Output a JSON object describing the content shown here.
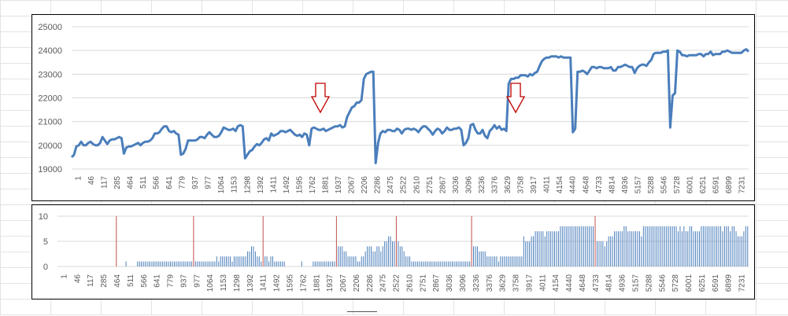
{
  "colors": {
    "line": "#4a7ebb",
    "bar": "#4a7ebb",
    "marker_bar": "#c0504d",
    "arrow": "#c00000",
    "grid": "#d9d9d9"
  },
  "chart_data": [
    {
      "type": "line",
      "title": "",
      "xlabel": "",
      "ylabel": "",
      "ylim": [
        19000,
        25000
      ],
      "yticks": [
        "19000",
        "20000",
        "21000",
        "22000",
        "23000",
        "24000",
        "25000"
      ],
      "xticks": [
        "1",
        "46",
        "117",
        "285",
        "464",
        "511",
        "566",
        "641",
        "779",
        "937",
        "977",
        "1064",
        "1153",
        "1298",
        "1392",
        "1411",
        "1492",
        "1595",
        "1762",
        "1881",
        "1937",
        "2067",
        "2206",
        "2286",
        "2475",
        "2522",
        "2610",
        "2751",
        "2867",
        "3036",
        "3096",
        "3236",
        "3376",
        "3629",
        "3758",
        "3917",
        "4011",
        "4154",
        "4440",
        "4648",
        "4733",
        "4814",
        "4936",
        "5157",
        "5288",
        "5546",
        "5728",
        "6001",
        "6251",
        "6591",
        "6899",
        "7231"
      ],
      "gridlines": "horizontal",
      "annotations": [
        {
          "type": "down-arrow",
          "near_x": "1762"
        },
        {
          "type": "down-arrow",
          "near_x": "3629"
        }
      ],
      "series": [
        {
          "values": [
            19500,
            19600,
            19950,
            20000,
            20150,
            20000,
            20000,
            20100,
            20150,
            20050,
            20000,
            20000,
            20100,
            20350,
            20200,
            20050,
            20200,
            20250,
            20250,
            20300,
            20350,
            20300,
            19650,
            19900,
            19950,
            19950,
            20000,
            20050,
            20100,
            20000,
            20100,
            20150,
            20150,
            20200,
            20300,
            20500,
            20500,
            20550,
            20700,
            20800,
            20800,
            20600,
            20550,
            20600,
            20500,
            20450,
            19600,
            19650,
            19850,
            20200,
            20200,
            20200,
            20200,
            20250,
            20350,
            20350,
            20300,
            20450,
            20550,
            20450,
            20350,
            20350,
            20400,
            20550,
            20750,
            20700,
            20650,
            20650,
            20700,
            20600,
            20800,
            20850,
            20800,
            19450,
            19600,
            19750,
            19800,
            19950,
            20050,
            20000,
            20100,
            20250,
            20300,
            20200,
            20500,
            20400,
            20450,
            20500,
            20600,
            20600,
            20550,
            20600,
            20650,
            20550,
            20450,
            20400,
            20450,
            20350,
            20500,
            20450,
            20000,
            20700,
            20750,
            20700,
            20650,
            20650,
            20700,
            20600,
            20650,
            20700,
            20750,
            20800,
            20800,
            20850,
            20750,
            20800,
            21200,
            21400,
            21600,
            21650,
            21800,
            21800,
            21900,
            22800,
            23000,
            23050,
            23100,
            23100,
            19250,
            20100,
            20500,
            20600,
            20550,
            20650,
            20650,
            20600,
            20600,
            20700,
            20650,
            20500,
            20650,
            20700,
            20700,
            20650,
            20700,
            20650,
            20550,
            20700,
            20800,
            20800,
            20700,
            20600,
            20450,
            20600,
            20700,
            20650,
            20500,
            20600,
            20750,
            20650,
            20650,
            20700,
            20700,
            20750,
            20650,
            20000,
            20100,
            20300,
            20850,
            20900,
            20650,
            20500,
            20500,
            20650,
            20400,
            20300,
            20600,
            20700,
            20850,
            20700,
            20800,
            20650,
            20700,
            20600,
            22600,
            22800,
            22800,
            22850,
            22850,
            22950,
            22950,
            22950,
            22900,
            23000,
            22950,
            23050,
            23100,
            23350,
            23550,
            23650,
            23700,
            23700,
            23750,
            23750,
            23750,
            23700,
            23750,
            23700,
            23700,
            23700,
            23700,
            20550,
            20700,
            23100,
            23100,
            23150,
            23100,
            23000,
            23150,
            23300,
            23300,
            23250,
            23300,
            23300,
            23250,
            23250,
            23250,
            23300,
            23150,
            23150,
            23300,
            23300,
            23350,
            23400,
            23350,
            23300,
            23300,
            23050,
            23250,
            23350,
            23400,
            23400,
            23350,
            23500,
            23600,
            23850,
            23900,
            23900,
            23900,
            23950,
            23950,
            24000,
            20750,
            22100,
            22200,
            24000,
            23950,
            23800,
            23800,
            23750,
            23800,
            23800,
            23800,
            23800,
            23850,
            23850,
            23750,
            23850,
            23850,
            23950,
            23800,
            23850,
            23850,
            23850,
            23950,
            23950,
            24000,
            23950,
            23900,
            23900,
            23900,
            23900,
            23900,
            24000,
            24050,
            23950
          ]
        }
      ]
    },
    {
      "type": "bar",
      "title": "",
      "xlabel": "",
      "ylabel": "",
      "ylim": [
        0,
        10
      ],
      "yticks": [
        "0",
        "5",
        "10"
      ],
      "xticks": [
        "1",
        "46",
        "117",
        "285",
        "464",
        "511",
        "566",
        "641",
        "779",
        "937",
        "977",
        "1064",
        "1153",
        "1298",
        "1392",
        "1411",
        "1492",
        "1595",
        "1762",
        "1881",
        "1937",
        "2067",
        "2206",
        "2286",
        "2475",
        "2522",
        "2610",
        "2751",
        "2867",
        "3036",
        "3096",
        "3236",
        "3376",
        "3629",
        "3758",
        "3917",
        "4011",
        "4154",
        "4440",
        "4648",
        "4733",
        "4814",
        "4936",
        "5157",
        "5288",
        "5546",
        "5728",
        "6001",
        "6251",
        "6591",
        "6899",
        "7231"
      ],
      "gridlines": "horizontal",
      "series": [
        {
          "values": [
            0,
            0,
            0,
            0,
            0,
            0,
            0,
            0,
            0,
            0,
            0,
            0,
            0,
            0,
            0,
            0,
            0,
            0,
            0,
            0,
            0,
            0,
            0,
            0,
            0,
            0,
            0,
            0,
            0,
            0,
            10,
            0,
            0,
            0,
            0,
            1,
            0,
            0,
            0,
            0,
            0,
            1,
            1,
            1,
            1,
            1,
            1,
            1,
            1,
            1,
            1,
            1,
            1,
            1,
            1,
            1,
            1,
            1,
            1,
            1,
            1,
            1,
            1,
            1,
            1,
            1,
            1,
            1,
            1,
            1,
            10,
            1,
            1,
            1,
            1,
            1,
            1,
            1,
            1,
            1,
            1,
            1,
            2,
            1,
            2,
            2,
            2,
            2,
            2,
            2,
            1,
            2,
            2,
            2,
            2,
            2,
            2,
            2,
            3,
            3,
            4,
            4,
            3,
            2,
            2,
            1,
            10,
            2,
            2,
            1,
            2,
            2,
            1,
            1,
            1,
            1,
            1,
            1,
            0,
            0,
            0,
            0,
            0,
            0,
            0,
            0,
            1,
            0,
            0,
            0,
            0,
            0,
            1,
            1,
            1,
            1,
            1,
            1,
            1,
            1,
            1,
            1,
            1,
            1,
            10,
            4,
            4,
            4,
            3,
            3,
            2,
            2,
            2,
            2,
            2,
            1,
            1,
            2,
            2,
            3,
            4,
            4,
            4,
            3,
            3,
            4,
            4,
            3,
            4,
            5,
            5,
            6,
            6,
            5,
            5,
            10,
            5,
            4,
            4,
            3,
            2,
            2,
            2,
            1,
            1,
            1,
            1,
            1,
            1,
            1,
            1,
            1,
            1,
            1,
            1,
            1,
            1,
            1,
            1,
            1,
            1,
            1,
            1,
            1,
            1,
            1,
            1,
            1,
            1,
            1,
            1,
            1,
            1,
            1,
            10,
            4,
            4,
            4,
            3,
            3,
            3,
            3,
            2,
            2,
            2,
            2,
            2,
            2,
            1,
            2,
            2,
            2,
            2,
            2,
            2,
            2,
            2,
            2,
            2,
            2,
            2,
            6,
            5,
            5,
            5,
            6,
            6,
            7,
            7,
            7,
            7,
            7,
            6,
            7,
            7,
            7,
            7,
            7,
            7,
            7,
            8,
            8,
            8,
            8,
            8,
            8,
            8,
            8,
            8,
            8,
            8,
            8,
            8,
            8,
            8,
            8,
            8,
            8,
            10,
            5,
            5,
            5,
            5,
            4,
            5,
            6,
            6,
            6,
            7,
            7,
            7,
            7,
            7,
            8,
            8,
            7,
            7,
            7,
            7,
            7,
            7,
            7,
            6,
            8,
            8,
            8,
            8,
            8,
            8,
            8,
            8,
            8,
            8,
            8,
            8,
            8,
            8,
            8,
            8,
            8,
            8,
            7,
            8,
            7,
            8,
            7,
            7,
            8,
            8,
            7,
            7,
            7,
            7,
            8,
            8,
            8,
            8,
            8,
            8,
            8,
            8,
            8,
            8,
            8,
            7,
            8,
            8,
            8,
            7,
            8,
            8,
            7,
            6,
            6,
            6,
            7,
            8,
            8
          ]
        }
      ]
    }
  ]
}
